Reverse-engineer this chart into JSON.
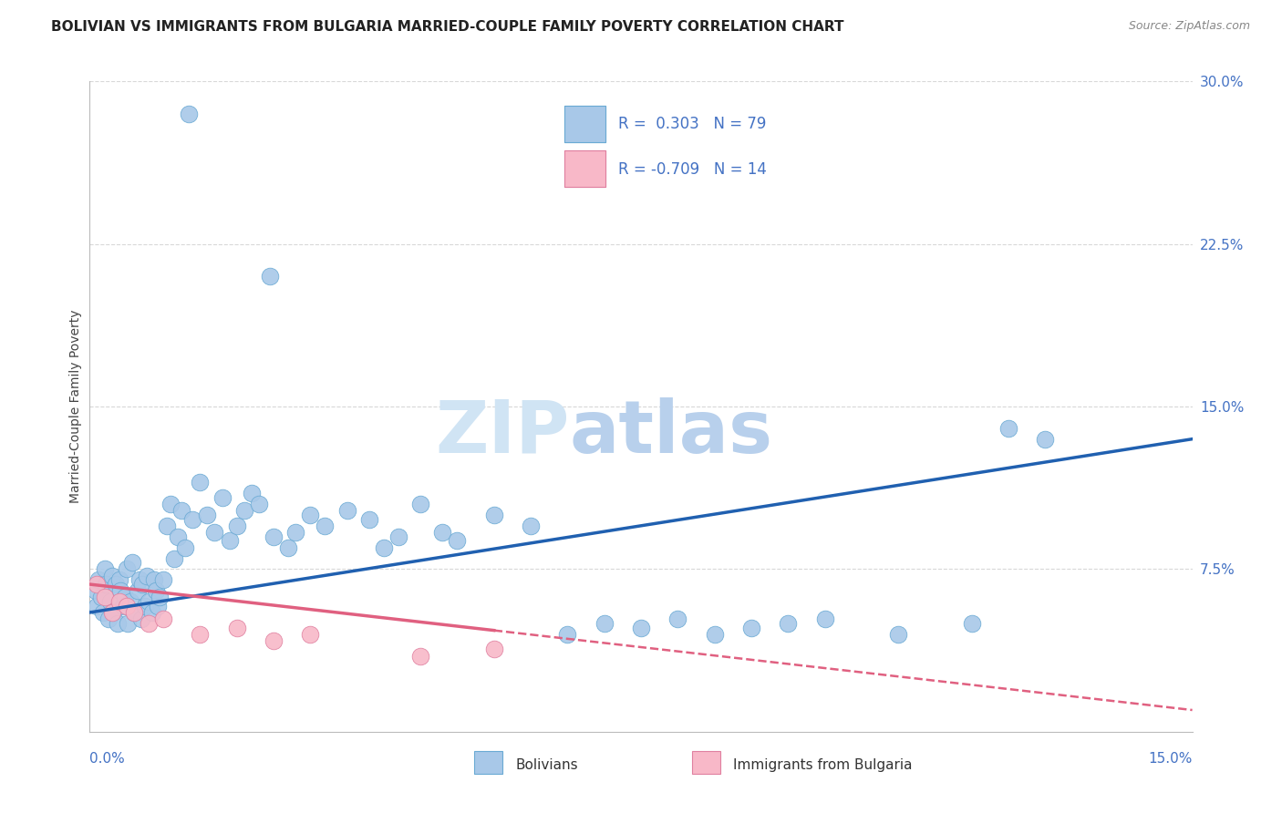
{
  "title": "BOLIVIAN VS IMMIGRANTS FROM BULGARIA MARRIED-COUPLE FAMILY POVERTY CORRELATION CHART",
  "source": "Source: ZipAtlas.com",
  "ylabel": "Married-Couple Family Poverty",
  "xlim": [
    0.0,
    15.0
  ],
  "ylim": [
    0.0,
    30.0
  ],
  "blue_R": 0.303,
  "blue_N": 79,
  "pink_R": -0.709,
  "pink_N": 14,
  "blue_color": "#a8c8e8",
  "blue_edge_color": "#6aaad4",
  "blue_line_color": "#2060b0",
  "pink_color": "#f8b8c8",
  "pink_edge_color": "#e080a0",
  "pink_line_color": "#e06080",
  "watermark_zip_color": "#d0e4f4",
  "watermark_atlas_color": "#b8d0ec",
  "background_color": "#ffffff",
  "grid_color": "#d8d8d8",
  "right_axis_color": "#4472c4",
  "blue_x": [
    0.08,
    0.1,
    0.12,
    0.15,
    0.18,
    0.2,
    0.22,
    0.25,
    0.28,
    0.3,
    0.32,
    0.35,
    0.38,
    0.4,
    0.42,
    0.45,
    0.48,
    0.5,
    0.52,
    0.55,
    0.58,
    0.6,
    0.65,
    0.68,
    0.7,
    0.72,
    0.75,
    0.78,
    0.8,
    0.85,
    0.88,
    0.9,
    0.92,
    0.95,
    1.0,
    1.05,
    1.1,
    1.15,
    1.2,
    1.25,
    1.3,
    1.4,
    1.5,
    1.6,
    1.7,
    1.8,
    1.9,
    2.0,
    2.1,
    2.2,
    2.3,
    2.5,
    2.7,
    2.8,
    3.0,
    3.2,
    3.5,
    3.8,
    4.0,
    4.2,
    4.5,
    4.8,
    5.0,
    5.5,
    6.0,
    6.5,
    7.0,
    7.5,
    8.0,
    8.5,
    9.0,
    9.5,
    10.0,
    11.0,
    12.0,
    12.5,
    13.0,
    1.35,
    2.45
  ],
  "blue_y": [
    6.5,
    5.8,
    7.0,
    6.2,
    5.5,
    7.5,
    6.8,
    5.2,
    6.0,
    7.2,
    5.5,
    6.8,
    5.0,
    7.0,
    6.5,
    5.8,
    6.2,
    7.5,
    5.0,
    6.0,
    7.8,
    5.5,
    6.5,
    7.0,
    5.2,
    6.8,
    5.8,
    7.2,
    6.0,
    5.5,
    7.0,
    6.5,
    5.8,
    6.2,
    7.0,
    9.5,
    10.5,
    8.0,
    9.0,
    10.2,
    8.5,
    9.8,
    11.5,
    10.0,
    9.2,
    10.8,
    8.8,
    9.5,
    10.2,
    11.0,
    10.5,
    9.0,
    8.5,
    9.2,
    10.0,
    9.5,
    10.2,
    9.8,
    8.5,
    9.0,
    10.5,
    9.2,
    8.8,
    10.0,
    9.5,
    4.5,
    5.0,
    4.8,
    5.2,
    4.5,
    4.8,
    5.0,
    5.2,
    4.5,
    5.0,
    14.0,
    13.5,
    28.5,
    21.0
  ],
  "pink_x": [
    0.1,
    0.2,
    0.3,
    0.4,
    0.5,
    0.6,
    0.8,
    1.0,
    1.5,
    2.0,
    2.5,
    3.0,
    4.5,
    5.5
  ],
  "pink_y": [
    6.8,
    6.2,
    5.5,
    6.0,
    5.8,
    5.5,
    5.0,
    5.2,
    4.5,
    4.8,
    4.2,
    4.5,
    3.5,
    3.8
  ],
  "blue_line_x0": 0.0,
  "blue_line_x1": 15.0,
  "blue_line_y0": 5.5,
  "blue_line_y1": 13.5,
  "pink_line_x0": 0.0,
  "pink_line_x1": 15.0,
  "pink_line_y0": 6.8,
  "pink_line_y1": 1.0,
  "pink_solid_end": 5.5
}
